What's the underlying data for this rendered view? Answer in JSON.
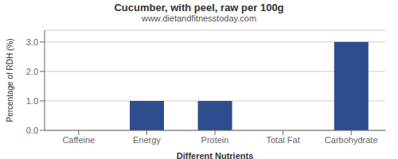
{
  "chart_data": {
    "type": "bar",
    "title": "Cucumber, with peel, raw per 100g",
    "subtitle": "www.dietandfitnesstoday.com",
    "xlabel": "Different Nutrients",
    "ylabel": "Percentage of RDH (%)",
    "categories": [
      "Caffeine",
      "Energy",
      "Protein",
      "Total Fat",
      "Carbohydrate"
    ],
    "values": [
      0.0,
      1.0,
      1.0,
      0.0,
      3.0
    ],
    "color": "#2e4d8e",
    "ylim": [
      0,
      3.4
    ],
    "yticks": [
      {
        "value": 0,
        "label": "0.0"
      },
      {
        "value": 1,
        "label": "1.0"
      },
      {
        "value": 2,
        "label": "2.0"
      },
      {
        "value": 3,
        "label": "3.0"
      }
    ],
    "grid": true
  }
}
